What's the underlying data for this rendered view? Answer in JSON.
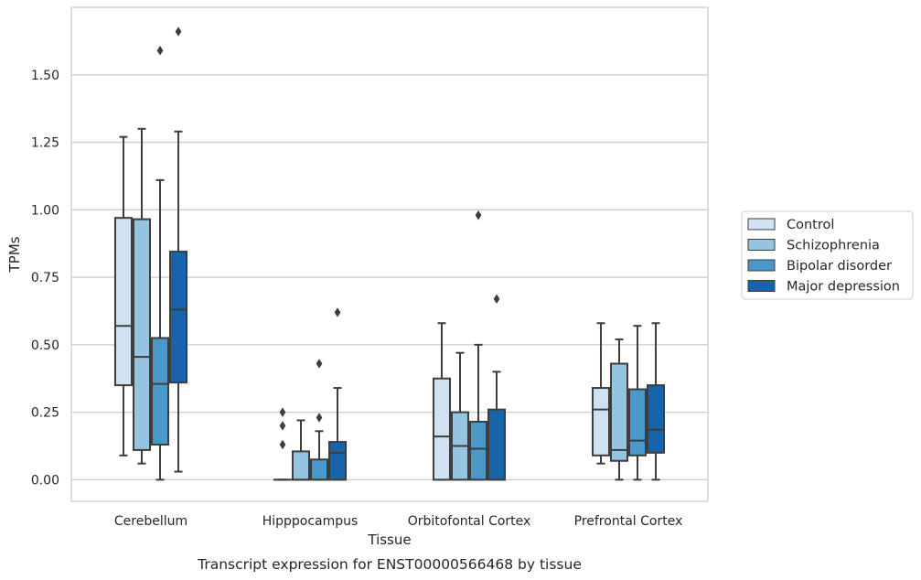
{
  "chart_data": {
    "type": "box",
    "title": "Transcript expression for ENST00000566468 by tissue",
    "xlabel": "Tissue",
    "ylabel": "TPMs",
    "ylim": [
      -0.08,
      1.75
    ],
    "yticks": [
      0.0,
      0.25,
      0.5,
      0.75,
      1.0,
      1.25,
      1.5
    ],
    "ytick_labels": [
      "0.00",
      "0.25",
      "0.50",
      "0.75",
      "1.00",
      "1.25",
      "1.50"
    ],
    "grid": "horizontal",
    "legend_position": "right",
    "categories": [
      "Cerebellum",
      "Hipppocampus",
      "Orbitofontal Cortex",
      "Prefrontal Cortex"
    ],
    "series": [
      {
        "name": "Control",
        "color": "#d0e1f2",
        "boxes": [
          {
            "whislo": 0.09,
            "q1": 0.35,
            "med": 0.57,
            "q3": 0.97,
            "whishi": 1.27,
            "fliers": []
          },
          {
            "whislo": 0.0,
            "q1": 0.0,
            "med": 0.0,
            "q3": 0.0,
            "whishi": 0.0,
            "fliers": [
              0.13,
              0.2,
              0.25
            ]
          },
          {
            "whislo": 0.0,
            "q1": 0.0,
            "med": 0.16,
            "q3": 0.375,
            "whishi": 0.58,
            "fliers": []
          },
          {
            "whislo": 0.06,
            "q1": 0.09,
            "med": 0.26,
            "q3": 0.34,
            "whishi": 0.58,
            "fliers": []
          }
        ]
      },
      {
        "name": "Schizophrenia",
        "color": "#94c4df",
        "boxes": [
          {
            "whislo": 0.06,
            "q1": 0.11,
            "med": 0.455,
            "q3": 0.965,
            "whishi": 1.3,
            "fliers": []
          },
          {
            "whislo": 0.0,
            "q1": 0.0,
            "med": 0.0,
            "q3": 0.105,
            "whishi": 0.22,
            "fliers": []
          },
          {
            "whislo": 0.0,
            "q1": 0.0,
            "med": 0.125,
            "q3": 0.25,
            "whishi": 0.47,
            "fliers": []
          },
          {
            "whislo": 0.0,
            "q1": 0.07,
            "med": 0.11,
            "q3": 0.43,
            "whishi": 0.52,
            "fliers": []
          }
        ]
      },
      {
        "name": "Bipolar disorder",
        "color": "#4a98c9",
        "boxes": [
          {
            "whislo": 0.0,
            "q1": 0.13,
            "med": 0.355,
            "q3": 0.525,
            "whishi": 1.11,
            "fliers": [
              1.59
            ]
          },
          {
            "whislo": 0.0,
            "q1": 0.0,
            "med": 0.0,
            "q3": 0.075,
            "whishi": 0.18,
            "fliers": [
              0.23,
              0.43
            ]
          },
          {
            "whislo": 0.0,
            "q1": 0.0,
            "med": 0.115,
            "q3": 0.215,
            "whishi": 0.5,
            "fliers": [
              0.98
            ]
          },
          {
            "whislo": 0.0,
            "q1": 0.09,
            "med": 0.145,
            "q3": 0.335,
            "whishi": 0.57,
            "fliers": []
          }
        ]
      },
      {
        "name": "Major depression",
        "color": "#1764ab",
        "boxes": [
          {
            "whislo": 0.03,
            "q1": 0.36,
            "med": 0.63,
            "q3": 0.845,
            "whishi": 1.29,
            "fliers": [
              1.66
            ]
          },
          {
            "whislo": 0.0,
            "q1": 0.0,
            "med": 0.1,
            "q3": 0.14,
            "whishi": 0.34,
            "fliers": [
              0.62
            ]
          },
          {
            "whislo": 0.0,
            "q1": 0.0,
            "med": 0.0,
            "q3": 0.26,
            "whishi": 0.4,
            "fliers": [
              0.67
            ]
          },
          {
            "whislo": 0.0,
            "q1": 0.1,
            "med": 0.185,
            "q3": 0.35,
            "whishi": 0.58,
            "fliers": []
          }
        ]
      }
    ]
  }
}
